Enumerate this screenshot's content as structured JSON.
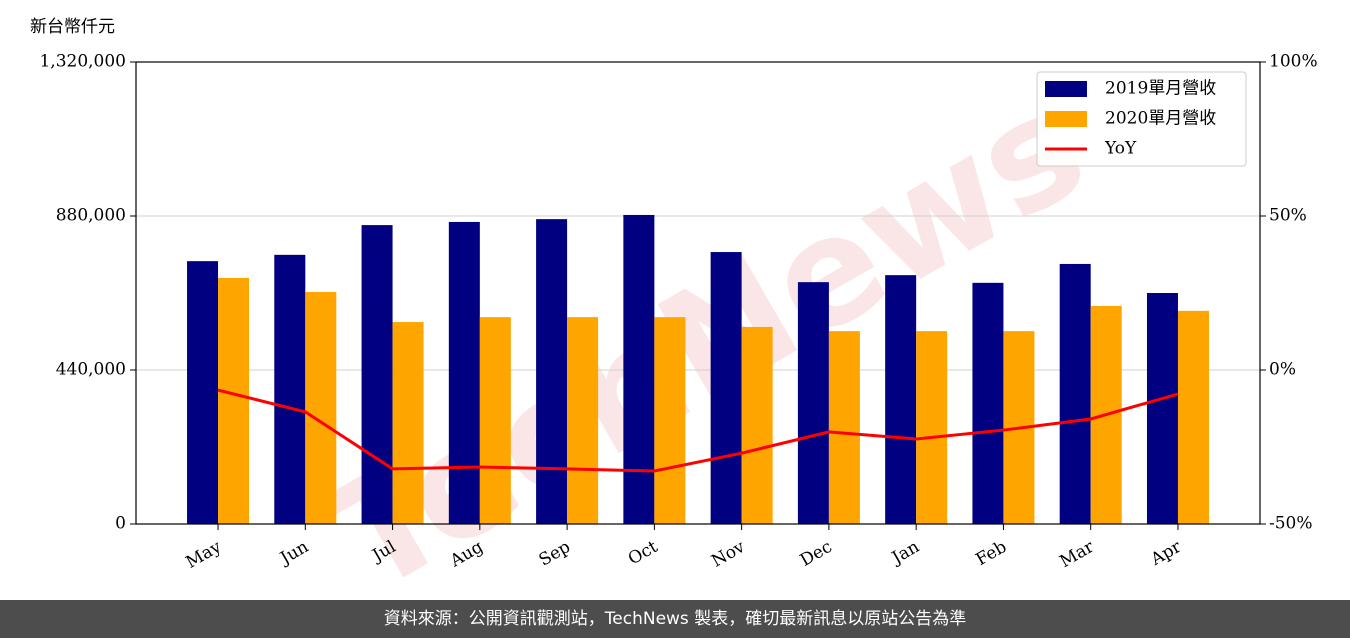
{
  "chart_data": {
    "type": "bar",
    "ylabel": "新台幣仟元",
    "categories": [
      "May",
      "Jun",
      "Jul",
      "Aug",
      "Sep",
      "Oct",
      "Nov",
      "Dec",
      "Jan",
      "Feb",
      "Mar",
      "Apr"
    ],
    "series": [
      {
        "name": "2019單月營收",
        "color": "#000080",
        "values": [
          751000,
          769000,
          854000,
          863000,
          871000,
          883000,
          777000,
          691000,
          711000,
          689000,
          743000,
          660000
        ]
      },
      {
        "name": "2020單月營收",
        "color": "#ffa500",
        "values": [
          703000,
          663000,
          577000,
          591000,
          591000,
          591000,
          563000,
          551000,
          551000,
          551000,
          623000,
          609000
        ]
      },
      {
        "name": "YoY",
        "color": "#ff0000",
        "type": "line",
        "axis": "y2",
        "values": [
          -6.5,
          -13.6,
          -32.1,
          -31.5,
          -32.1,
          -32.8,
          -27.0,
          -20.1,
          -22.4,
          -19.5,
          -15.9,
          -7.8
        ]
      }
    ],
    "ylim": [
      0,
      1320000
    ],
    "yticks": [
      0,
      {
        "value": 440000,
        "label": "440,000"
      },
      {
        "value": 880000,
        "label": "880,000"
      },
      {
        "value": 1320000,
        "label": "1,320,000"
      }
    ],
    "y2lim": [
      -50,
      100
    ],
    "y2ticks": [
      {
        "value": -50,
        "label": "-50%"
      },
      {
        "value": 0,
        "label": "0%"
      },
      {
        "value": 50,
        "label": "50%"
      },
      {
        "value": 100,
        "label": "100%"
      }
    ],
    "grid": true,
    "legend": "upper right",
    "watermark": "TechNews",
    "footer": "資料來源：公開資訊觀測站，TechNews 製表，確切最新訊息以原站公告為準"
  }
}
